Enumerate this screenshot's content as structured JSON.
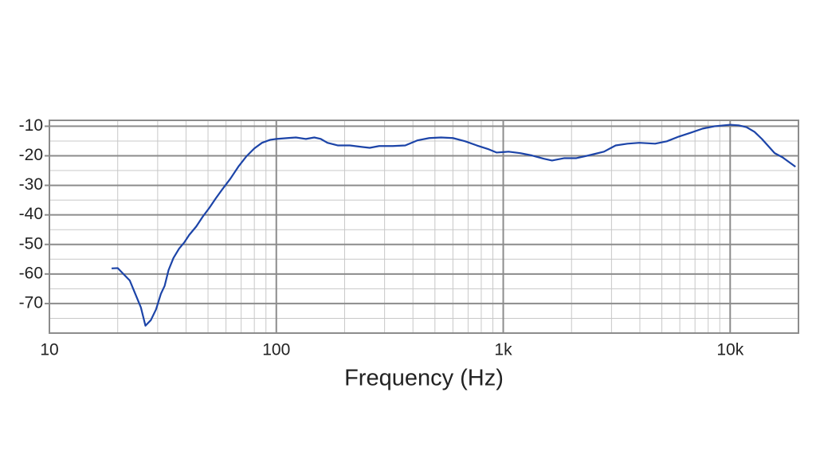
{
  "chart_data": {
    "type": "line",
    "x_label": "Frequency (Hz)",
    "xscale": "log",
    "grid": true,
    "xlim": [
      10,
      20000
    ],
    "ylim": [
      -80,
      -8
    ],
    "xticks": [
      10,
      100,
      {
        "value": 1000,
        "label": "1k"
      },
      {
        "value": 10000,
        "label": "10k"
      }
    ],
    "yticks": [
      -10,
      -20,
      -30,
      -40,
      -50,
      -60,
      -70
    ],
    "series": [
      {
        "color": "#1c44a8",
        "x": [
          18.8,
          20,
          21.2,
          22.6,
          23.9,
          25.3,
          26.5,
          28,
          29.5,
          31,
          32.2,
          33.5,
          35.2,
          37.3,
          39.4,
          41.3,
          44.4,
          47.4,
          50.6,
          54,
          58,
          62.8,
          68,
          73.8,
          80,
          86.5,
          94,
          100,
          112,
          122,
          135,
          147,
          157,
          168,
          187,
          211,
          238,
          258,
          284,
          326,
          370,
          418,
          472,
          532,
          600,
          680,
          765,
          863,
          934,
          1055,
          1190,
          1340,
          1510,
          1640,
          1860,
          2100,
          2370,
          2780,
          3130,
          3530,
          3980,
          4670,
          5260,
          5940,
          6700,
          7570,
          8540,
          10000,
          10900,
          11800,
          12800,
          13800,
          15700,
          17000,
          19400
        ],
        "values": [
          -58.1,
          -58,
          -60,
          -62.2,
          -66.7,
          -71.3,
          -77.5,
          -75.6,
          -72,
          -66.7,
          -64,
          -58.7,
          -54.6,
          -51.4,
          -49.2,
          -46.8,
          -43.9,
          -40.6,
          -37.7,
          -34.5,
          -31.2,
          -27.7,
          -23.7,
          -20.2,
          -17.5,
          -15.6,
          -14.6,
          -14.3,
          -14,
          -13.8,
          -14.3,
          -13.8,
          -14.3,
          -15.6,
          -16.5,
          -16.5,
          -17,
          -17.3,
          -16.7,
          -16.7,
          -16.5,
          -14.8,
          -14,
          -13.8,
          -14,
          -15.1,
          -16.5,
          -17.8,
          -18.9,
          -18.6,
          -19.1,
          -19.9,
          -21,
          -21.6,
          -20.8,
          -20.8,
          -19.9,
          -18.6,
          -16.5,
          -15.9,
          -15.6,
          -15.9,
          -15.1,
          -13.5,
          -12.2,
          -10.8,
          -10,
          -9.5,
          -9.7,
          -10.3,
          -11.9,
          -14.3,
          -19.1,
          -20.5,
          -23.7
        ]
      }
    ]
  }
}
